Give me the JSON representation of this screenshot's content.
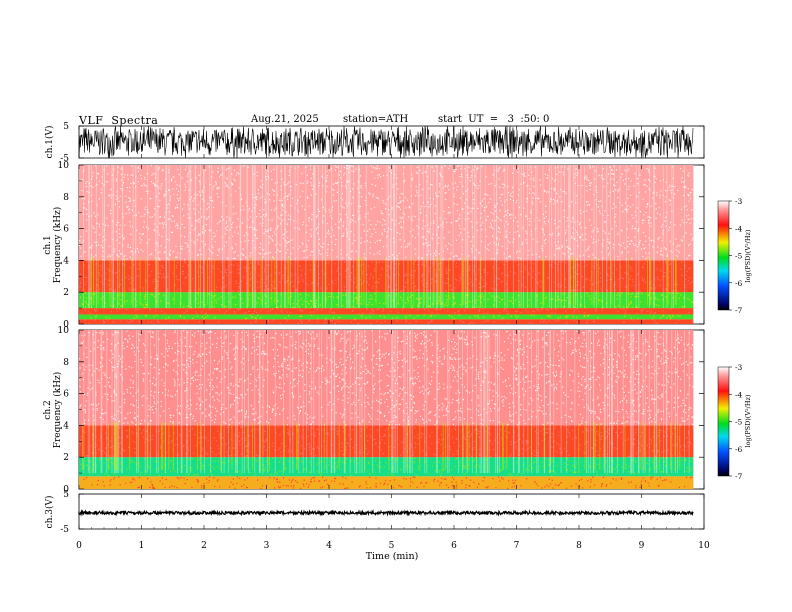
{
  "header": {
    "title": "VLF  Spectra",
    "date": "Aug.21, 2025",
    "station": "station=ATH",
    "start": "start  UT  =   3  :50: 0"
  },
  "chart_data": {
    "type": "heatmap",
    "xaxis": {
      "label": "Time  (min)",
      "range": [
        0,
        10
      ],
      "ticks": [
        "0",
        "1",
        "2",
        "3",
        "4",
        "5",
        "6",
        "7",
        "8",
        "9",
        "10"
      ],
      "data_end_min": 9.83
    },
    "panels": [
      {
        "kind": "waveform",
        "ylabel": "ch.1(V)",
        "ylim": [
          -5,
          5
        ],
        "yticks": [
          "5",
          "-5"
        ],
        "amplitude": "saturated, roughly -5 to 5"
      },
      {
        "kind": "spectrogram",
        "ylabel_channel": "ch.1",
        "ylabel": "Frequency  (kHz)",
        "ylim": [
          0,
          10
        ],
        "yticks": [
          "10",
          "8",
          "6",
          "4",
          "2",
          "0"
        ],
        "bands_khz": [
          {
            "from": 0,
            "to": 0.3,
            "level": -4
          },
          {
            "from": 0.3,
            "to": 0.6,
            "level": -5
          },
          {
            "from": 0.6,
            "to": 1.0,
            "level": -4
          },
          {
            "from": 1.0,
            "to": 2.0,
            "level": -5
          },
          {
            "from": 2.0,
            "to": 4.0,
            "level": -4
          },
          {
            "from": 4.0,
            "to": 10.0,
            "level": -3.3
          }
        ],
        "colorbar": {
          "label": "log(PSD)(V²/Hz)",
          "ticks": [
            "-3",
            "-4",
            "-5",
            "-6",
            "-7"
          ],
          "range": [
            -7,
            -3
          ]
        }
      },
      {
        "kind": "spectrogram",
        "ylabel_channel": "ch.2",
        "ylabel": "Frequency  (kHz)",
        "ylim": [
          0,
          10
        ],
        "yticks": [
          "10",
          "8",
          "6",
          "4",
          "2",
          "0"
        ],
        "bands_khz": [
          {
            "from": 0,
            "to": 0.8,
            "level": -4.3
          },
          {
            "from": 0.8,
            "to": 2.0,
            "level": -5.3
          },
          {
            "from": 2.0,
            "to": 4.0,
            "level": -4
          },
          {
            "from": 4.0,
            "to": 10.0,
            "level": -3.4
          }
        ],
        "colorbar": {
          "label": "log(PSD)(V²/Hz)",
          "ticks": [
            "-3",
            "-4",
            "-5",
            "-6",
            "-7"
          ],
          "range": [
            -7,
            -3
          ]
        }
      },
      {
        "kind": "waveform",
        "ylabel": "ch.3(V)",
        "ylim": [
          -5,
          5
        ],
        "yticks": [
          "5",
          "-5"
        ],
        "amplitude": "flat band near 0 V"
      }
    ]
  }
}
